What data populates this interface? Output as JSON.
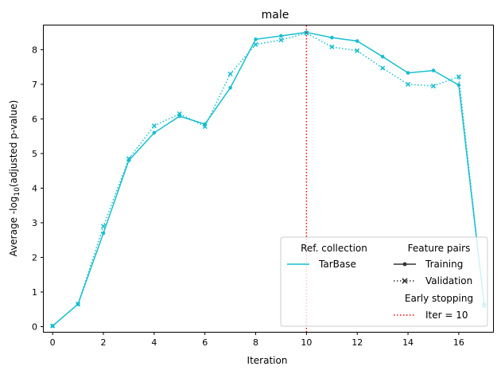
{
  "chart_data": {
    "type": "line",
    "title": "male",
    "xlabel": "Iteration",
    "ylabel_prefix": "Average -log",
    "ylabel_sub": "10",
    "ylabel_suffix": "(adjusted p-value)",
    "xlim": [
      -0.35,
      17.35
    ],
    "ylim": [
      -0.15,
      8.7
    ],
    "x_ticks": [
      0,
      2,
      4,
      6,
      8,
      10,
      12,
      14,
      16
    ],
    "y_ticks": [
      0,
      1,
      2,
      3,
      4,
      5,
      6,
      7,
      8
    ],
    "grid": false,
    "line_color": "#17becf",
    "early_stop_color": "#ff0000",
    "early_stop_x": 10,
    "series": [
      {
        "name": "Training",
        "style": "solid-dot",
        "x": [
          0,
          1,
          2,
          3,
          4,
          5,
          6,
          7,
          8,
          9,
          10,
          11,
          12,
          13,
          14,
          15,
          16,
          17
        ],
        "y": [
          0.02,
          0.65,
          2.7,
          4.8,
          5.6,
          6.08,
          5.85,
          6.9,
          8.3,
          8.4,
          8.5,
          8.35,
          8.25,
          7.8,
          7.33,
          7.4,
          6.98,
          0.65
        ]
      },
      {
        "name": "Validation",
        "style": "dotted-x",
        "x": [
          0,
          1,
          2,
          3,
          4,
          5,
          6,
          7,
          8,
          9,
          10,
          11,
          12,
          13,
          14,
          15,
          16,
          17
        ],
        "y": [
          0.02,
          0.65,
          2.9,
          4.85,
          5.8,
          6.15,
          5.78,
          7.3,
          8.15,
          8.28,
          8.48,
          8.08,
          7.97,
          7.47,
          7.0,
          6.95,
          7.22,
          0.6
        ]
      }
    ],
    "legend": {
      "placement": "lower-right",
      "ref_title": "Ref. collection",
      "ref_entry": "TarBase",
      "pairs_title": "Feature pairs",
      "pairs_training": "Training",
      "pairs_validation": "Validation",
      "stop_title": "Early stopping",
      "stop_entry": "Iter = 10"
    }
  }
}
